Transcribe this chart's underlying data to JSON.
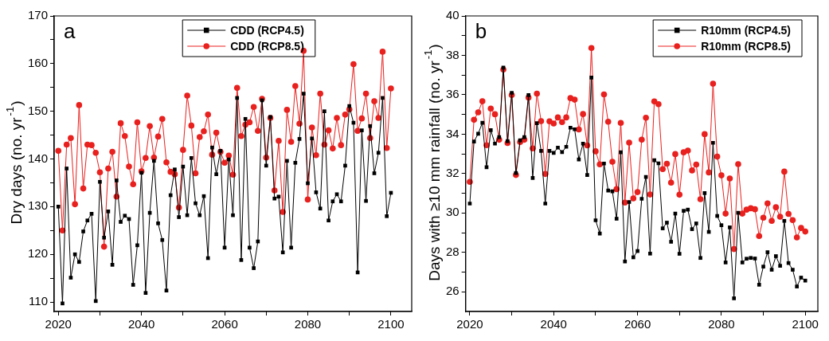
{
  "chart_data": [
    {
      "type": "line",
      "ylabel": "Dry days (no. yr$^{-1}$)",
      "annotations": [
        "a"
      ],
      "legend": "top",
      "grid": false,
      "x": [
        2020,
        2021,
        2022,
        2023,
        2024,
        2025,
        2026,
        2027,
        2028,
        2029,
        2030,
        2031,
        2032,
        2033,
        2034,
        2035,
        2036,
        2037,
        2038,
        2039,
        2040,
        2041,
        2042,
        2043,
        2044,
        2045,
        2046,
        2047,
        2048,
        2049,
        2050,
        2051,
        2052,
        2053,
        2054,
        2055,
        2056,
        2057,
        2058,
        2059,
        2060,
        2061,
        2062,
        2063,
        2064,
        2065,
        2066,
        2067,
        2068,
        2069,
        2070,
        2071,
        2072,
        2073,
        2074,
        2075,
        2076,
        2077,
        2078,
        2079,
        2080,
        2081,
        2082,
        2083,
        2084,
        2085,
        2086,
        2087,
        2088,
        2089,
        2090,
        2091,
        2092,
        2093,
        2094,
        2095,
        2096,
        2097,
        2098,
        2099,
        2100
      ],
      "xlim": [
        2019,
        2105
      ],
      "xticks": [
        2020,
        {
          "value": 2030,
          "label": null
        },
        2040,
        {
          "value": 2050,
          "label": null
        },
        2060,
        {
          "value": 2070,
          "label": null
        },
        2080,
        {
          "value": 2090,
          "label": null
        },
        2100
      ],
      "ylim": [
        108,
        170
      ],
      "yticks": [
        110,
        {
          "value": 115,
          "label": null
        },
        120,
        {
          "value": 125,
          "label": null
        },
        130,
        {
          "value": 135,
          "label": null
        },
        140,
        {
          "value": 145,
          "label": null
        },
        150,
        {
          "value": 155,
          "label": null
        },
        160,
        {
          "value": 165,
          "label": null
        },
        170
      ],
      "series": [
        {
          "name": "CDD (RCP4.5)",
          "color": "#000000",
          "marker": "square",
          "values": [
            130.0,
            109.7,
            138.0,
            115.1,
            120.0,
            118.4,
            124.8,
            127.1,
            128.5,
            110.2,
            135.2,
            123.5,
            129.0,
            117.8,
            135.5,
            126.8,
            128.1,
            127.4,
            113.6,
            121.9,
            137.1,
            111.9,
            128.7,
            139.6,
            126.5,
            123.0,
            112.4,
            132.4,
            137.8,
            127.8,
            138.4,
            128.2,
            140.2,
            130.7,
            128.2,
            132.2,
            119.2,
            142.4,
            136.8,
            141.7,
            121.4,
            139.9,
            128.2,
            152.8,
            118.8,
            148.4,
            121.4,
            117.1,
            122.7,
            152.3,
            138.6,
            148.8,
            131.7,
            132.1,
            120.4,
            139.6,
            121.4,
            139.2,
            144.2,
            153.7,
            134.9,
            144.3,
            133.0,
            129.6,
            150.0,
            127.1,
            131.1,
            132.6,
            131.1,
            138.6,
            151.1,
            147.6,
            116.2,
            146.0,
            131.2,
            146.9,
            137.0,
            141.3,
            152.8,
            128.0,
            132.9
          ]
        },
        {
          "name": "CDD (RCP8.5)",
          "color": "#e8201e",
          "marker": "circle",
          "values": [
            141.7,
            125.0,
            143.0,
            144.4,
            130.5,
            151.3,
            133.8,
            143.0,
            142.9,
            141.3,
            137.2,
            121.6,
            138.0,
            141.5,
            132.1,
            147.5,
            144.8,
            138.4,
            134.7,
            147.7,
            137.4,
            140.2,
            146.9,
            140.3,
            144.7,
            148.4,
            139.3,
            137.3,
            136.8,
            129.8,
            141.9,
            153.3,
            147.0,
            137.0,
            144.6,
            145.8,
            149.3,
            140.9,
            145.5,
            141.5,
            139.2,
            140.7,
            136.7,
            154.9,
            144.8,
            147.2,
            147.7,
            150.9,
            145.9,
            152.6,
            140.3,
            148.6,
            133.4,
            143.8,
            128.9,
            150.3,
            143.6,
            155.3,
            147.4,
            162.7,
            131.5,
            146.6,
            140.8,
            153.7,
            143.0,
            146.0,
            142.2,
            148.6,
            142.9,
            149.3,
            150.4,
            159.9,
            145.9,
            148.5,
            153.7,
            144.4,
            152.1,
            148.6,
            162.5,
            142.3,
            154.8
          ]
        }
      ]
    },
    {
      "type": "line",
      "ylabel": "Days with ≥10 mm rainfall (no. yr$^{-1}$)",
      "annotations": [
        "b"
      ],
      "legend": "top right",
      "grid": false,
      "x": [
        2020,
        2021,
        2022,
        2023,
        2024,
        2025,
        2026,
        2027,
        2028,
        2029,
        2030,
        2031,
        2032,
        2033,
        2034,
        2035,
        2036,
        2037,
        2038,
        2039,
        2040,
        2041,
        2042,
        2043,
        2044,
        2045,
        2046,
        2047,
        2048,
        2049,
        2050,
        2051,
        2052,
        2053,
        2054,
        2055,
        2056,
        2057,
        2058,
        2059,
        2060,
        2061,
        2062,
        2063,
        2064,
        2065,
        2066,
        2067,
        2068,
        2069,
        2070,
        2071,
        2072,
        2073,
        2074,
        2075,
        2076,
        2077,
        2078,
        2079,
        2080,
        2081,
        2082,
        2083,
        2084,
        2085,
        2086,
        2087,
        2088,
        2089,
        2090,
        2091,
        2092,
        2093,
        2094,
        2095,
        2096,
        2097,
        2098,
        2099,
        2100
      ],
      "xlim": [
        2019,
        2103
      ],
      "xticks": [
        2020,
        {
          "value": 2030,
          "label": null
        },
        2040,
        {
          "value": 2050,
          "label": null
        },
        2060,
        {
          "value": 2070,
          "label": null
        },
        2080,
        {
          "value": 2090,
          "label": null
        },
        2100
      ],
      "ylim": [
        25,
        40
      ],
      "yticks": [
        26,
        {
          "value": 27,
          "label": null
        },
        28,
        {
          "value": 29,
          "label": null
        },
        30,
        {
          "value": 31,
          "label": null
        },
        32,
        {
          "value": 33,
          "label": null
        },
        34,
        {
          "value": 35,
          "label": null
        },
        36,
        {
          "value": 37,
          "label": null
        },
        38,
        {
          "value": 39,
          "label": null
        },
        40
      ],
      "series": [
        {
          "name": "R10mm (RCP4.5)",
          "color": "#000000",
          "marker": "square",
          "values": [
            30.48,
            33.63,
            34.02,
            34.58,
            32.32,
            34.2,
            33.52,
            33.85,
            37.38,
            33.65,
            36.1,
            32.03,
            33.69,
            33.85,
            35.98,
            31.78,
            34.56,
            33.15,
            30.48,
            33.15,
            33.05,
            33.32,
            33.09,
            33.36,
            34.33,
            34.25,
            32.72,
            33.52,
            31.93,
            36.87,
            29.63,
            28.96,
            32.51,
            31.14,
            31.1,
            29.71,
            33.08,
            27.54,
            30.56,
            27.75,
            28.07,
            30.72,
            31.83,
            27.94,
            32.68,
            32.52,
            29.22,
            29.51,
            28.54,
            29.97,
            27.93,
            30.11,
            30.17,
            29.18,
            29.47,
            27.72,
            31.01,
            29.04,
            33.56,
            29.85,
            29.38,
            27.49,
            29.27,
            25.67,
            30.01,
            27.49,
            27.68,
            27.72,
            27.69,
            26.36,
            27.28,
            28.01,
            27.12,
            27.81,
            27.32,
            29.6,
            27.46,
            27.12,
            26.27,
            26.72,
            26.57
          ]
        },
        {
          "name": "R10mm (RCP8.5)",
          "color": "#e8201e",
          "marker": "circle",
          "values": [
            31.58,
            34.73,
            35.11,
            35.67,
            33.44,
            35.3,
            35.01,
            33.72,
            37.28,
            33.55,
            35.99,
            31.93,
            33.6,
            33.72,
            35.86,
            33.28,
            36.06,
            34.66,
            31.98,
            34.65,
            34.54,
            34.85,
            34.61,
            34.85,
            35.83,
            35.75,
            34.24,
            35.02,
            33.43,
            38.37,
            33.13,
            32.47,
            36.02,
            34.63,
            32.6,
            31.21,
            34.57,
            30.53,
            33.57,
            30.74,
            31.06,
            33.72,
            34.83,
            30.94,
            35.66,
            35.52,
            32.23,
            32.5,
            31.54,
            32.99,
            30.93,
            33.08,
            33.17,
            32.16,
            32.46,
            30.7,
            34.0,
            32.06,
            36.56,
            32.86,
            31.91,
            29.97,
            31.75,
            28.17,
            32.48,
            29.97,
            30.17,
            30.24,
            30.19,
            28.83,
            29.76,
            30.49,
            29.6,
            30.29,
            29.81,
            32.1,
            29.95,
            29.64,
            28.76,
            29.24,
            29.06
          ]
        }
      ]
    }
  ]
}
